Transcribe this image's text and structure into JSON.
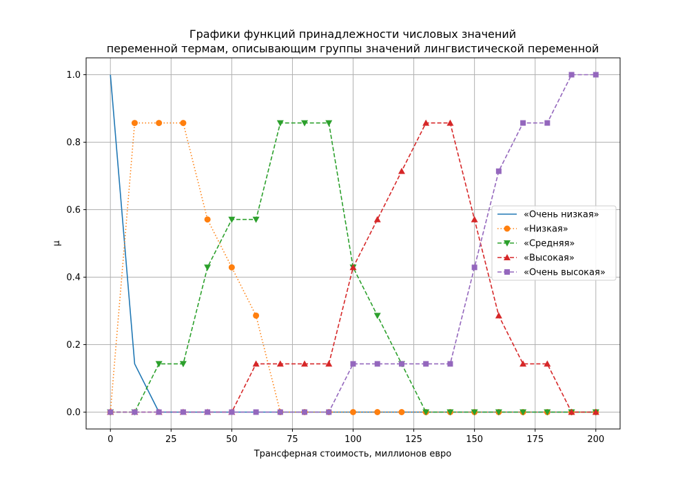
{
  "chart_data": {
    "type": "line",
    "title_lines": [
      "Графики функций принадлежности числовых значений",
      "переменной термам, описывающим группы значений лингвистической переменной"
    ],
    "xlabel": "Трансферная стоимость, миллионов евро",
    "ylabel": "μ",
    "xlim": [
      -10,
      210
    ],
    "ylim": [
      -0.05,
      1.05
    ],
    "xticks": [
      0,
      25,
      50,
      75,
      100,
      125,
      150,
      175,
      200
    ],
    "yticks": [
      0.0,
      0.2,
      0.4,
      0.6,
      0.8,
      1.0
    ],
    "xtick_labels": [
      "0",
      "25",
      "50",
      "75",
      "100",
      "125",
      "150",
      "175",
      "200"
    ],
    "ytick_labels": [
      "0.0",
      "0.2",
      "0.4",
      "0.6",
      "0.8",
      "1.0"
    ],
    "grid": true,
    "legend_position": "center-right",
    "x": [
      0,
      10,
      20,
      30,
      40,
      50,
      60,
      70,
      80,
      90,
      100,
      110,
      120,
      130,
      140,
      150,
      160,
      170,
      180,
      190,
      200
    ],
    "series": [
      {
        "name": "«Очень низкая»",
        "color": "#1f77b4",
        "dash": "solid",
        "marker": "none",
        "values": [
          1.0,
          0.143,
          0,
          0,
          0,
          0,
          0,
          0,
          0,
          0,
          0,
          0,
          0,
          0,
          0,
          0,
          0,
          0,
          0,
          0,
          0
        ]
      },
      {
        "name": "«Низкая»",
        "color": "#ff7f0e",
        "dash": "dotted",
        "marker": "circle",
        "values": [
          0,
          0.857,
          0.857,
          0.857,
          0.571,
          0.429,
          0.286,
          0,
          0,
          0,
          0,
          0,
          0,
          0,
          0,
          0,
          0,
          0,
          0,
          0,
          0
        ]
      },
      {
        "name": "«Средняя»",
        "color": "#2ca02c",
        "dash": "dashed",
        "marker": "triangle-down",
        "values": [
          0,
          0,
          0.143,
          0.143,
          0.429,
          0.571,
          0.571,
          0.857,
          0.857,
          0.857,
          0.429,
          0.286,
          0.143,
          0,
          0,
          0,
          0,
          0,
          0,
          0,
          0
        ]
      },
      {
        "name": "«Высокая»",
        "color": "#d62728",
        "dash": "dashed",
        "marker": "triangle-up",
        "values": [
          0,
          0,
          0,
          0,
          0,
          0,
          0.143,
          0.143,
          0.143,
          0.143,
          0.429,
          0.571,
          0.714,
          0.857,
          0.857,
          0.571,
          0.286,
          0.143,
          0.143,
          0,
          0
        ]
      },
      {
        "name": "«Очень высокая»",
        "color": "#9467bd",
        "dash": "dashed",
        "marker": "square",
        "values": [
          0,
          0,
          0,
          0,
          0,
          0,
          0,
          0,
          0,
          0,
          0.143,
          0.143,
          0.143,
          0.143,
          0.143,
          0.429,
          0.714,
          0.857,
          0.857,
          1.0,
          1.0
        ]
      }
    ]
  }
}
